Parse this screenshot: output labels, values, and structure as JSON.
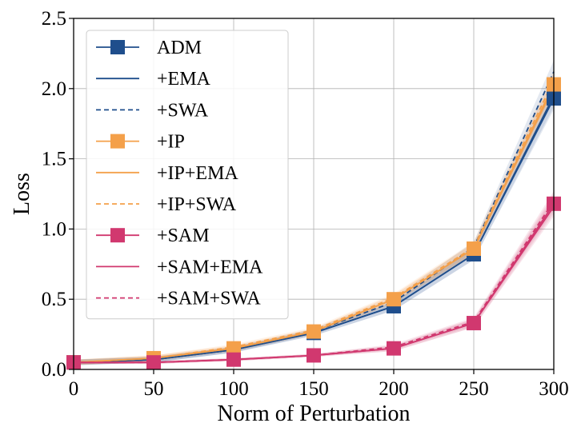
{
  "chart_data": {
    "type": "line",
    "title": "",
    "xlabel": "Norm of Perturbation",
    "ylabel": "Loss",
    "x": [
      0,
      50,
      100,
      150,
      200,
      250,
      300
    ],
    "xlim": [
      0,
      300
    ],
    "ylim": [
      0,
      2.5
    ],
    "xticks": [
      "0",
      "50",
      "100",
      "150",
      "200",
      "250",
      "300"
    ],
    "yticks": [
      "0.0",
      "0.5",
      "1.0",
      "1.5",
      "2.0",
      "2.5"
    ],
    "grid": true,
    "legend_position": "top-left",
    "series": [
      {
        "name": "ADM",
        "color": "#1f4e8c",
        "style": "solid",
        "marker": "square",
        "values": [
          0.05,
          0.07,
          0.14,
          0.26,
          0.45,
          0.82,
          1.93
        ],
        "band": [
          0.02,
          0.02,
          0.02,
          0.02,
          0.03,
          0.04,
          0.08
        ]
      },
      {
        "name": "+EMA",
        "color": "#1f4e8c",
        "style": "solid",
        "marker": "none",
        "values": [
          0.05,
          0.07,
          0.14,
          0.26,
          0.45,
          0.82,
          1.95
        ],
        "band": [
          0.02,
          0.02,
          0.02,
          0.02,
          0.03,
          0.04,
          0.08
        ]
      },
      {
        "name": "+SWA",
        "color": "#1f4e8c",
        "style": "dashed",
        "marker": "none",
        "values": [
          0.05,
          0.07,
          0.14,
          0.27,
          0.48,
          0.87,
          2.12
        ],
        "band": [
          0.02,
          0.02,
          0.02,
          0.02,
          0.03,
          0.04,
          0.08
        ]
      },
      {
        "name": "+IP",
        "color": "#f4a04a",
        "style": "solid",
        "marker": "square",
        "values": [
          0.05,
          0.08,
          0.15,
          0.27,
          0.5,
          0.86,
          2.03
        ],
        "band": [
          0.02,
          0.02,
          0.02,
          0.02,
          0.03,
          0.04,
          0.07
        ]
      },
      {
        "name": "+IP+EMA",
        "color": "#f4a04a",
        "style": "solid",
        "marker": "none",
        "values": [
          0.05,
          0.08,
          0.15,
          0.27,
          0.5,
          0.86,
          2.01
        ],
        "band": [
          0.02,
          0.02,
          0.02,
          0.02,
          0.03,
          0.04,
          0.07
        ]
      },
      {
        "name": "+IP+SWA",
        "color": "#f4a04a",
        "style": "dashed",
        "marker": "none",
        "values": [
          0.05,
          0.08,
          0.16,
          0.28,
          0.51,
          0.87,
          2.06
        ],
        "band": [
          0.02,
          0.02,
          0.02,
          0.02,
          0.03,
          0.04,
          0.07
        ]
      },
      {
        "name": "+SAM",
        "color": "#d1386f",
        "style": "solid",
        "marker": "square",
        "values": [
          0.05,
          0.05,
          0.07,
          0.1,
          0.15,
          0.33,
          1.18
        ],
        "band": [
          0.01,
          0.01,
          0.01,
          0.01,
          0.02,
          0.03,
          0.07
        ]
      },
      {
        "name": "+SAM+EMA",
        "color": "#d1386f",
        "style": "solid",
        "marker": "none",
        "values": [
          0.05,
          0.05,
          0.07,
          0.1,
          0.15,
          0.33,
          1.16
        ],
        "band": [
          0.01,
          0.01,
          0.01,
          0.01,
          0.02,
          0.03,
          0.07
        ]
      },
      {
        "name": "+SAM+SWA",
        "color": "#d1386f",
        "style": "dashed",
        "marker": "none",
        "values": [
          0.05,
          0.05,
          0.07,
          0.1,
          0.16,
          0.34,
          1.2
        ],
        "band": [
          0.01,
          0.01,
          0.01,
          0.01,
          0.02,
          0.03,
          0.07
        ]
      }
    ]
  }
}
